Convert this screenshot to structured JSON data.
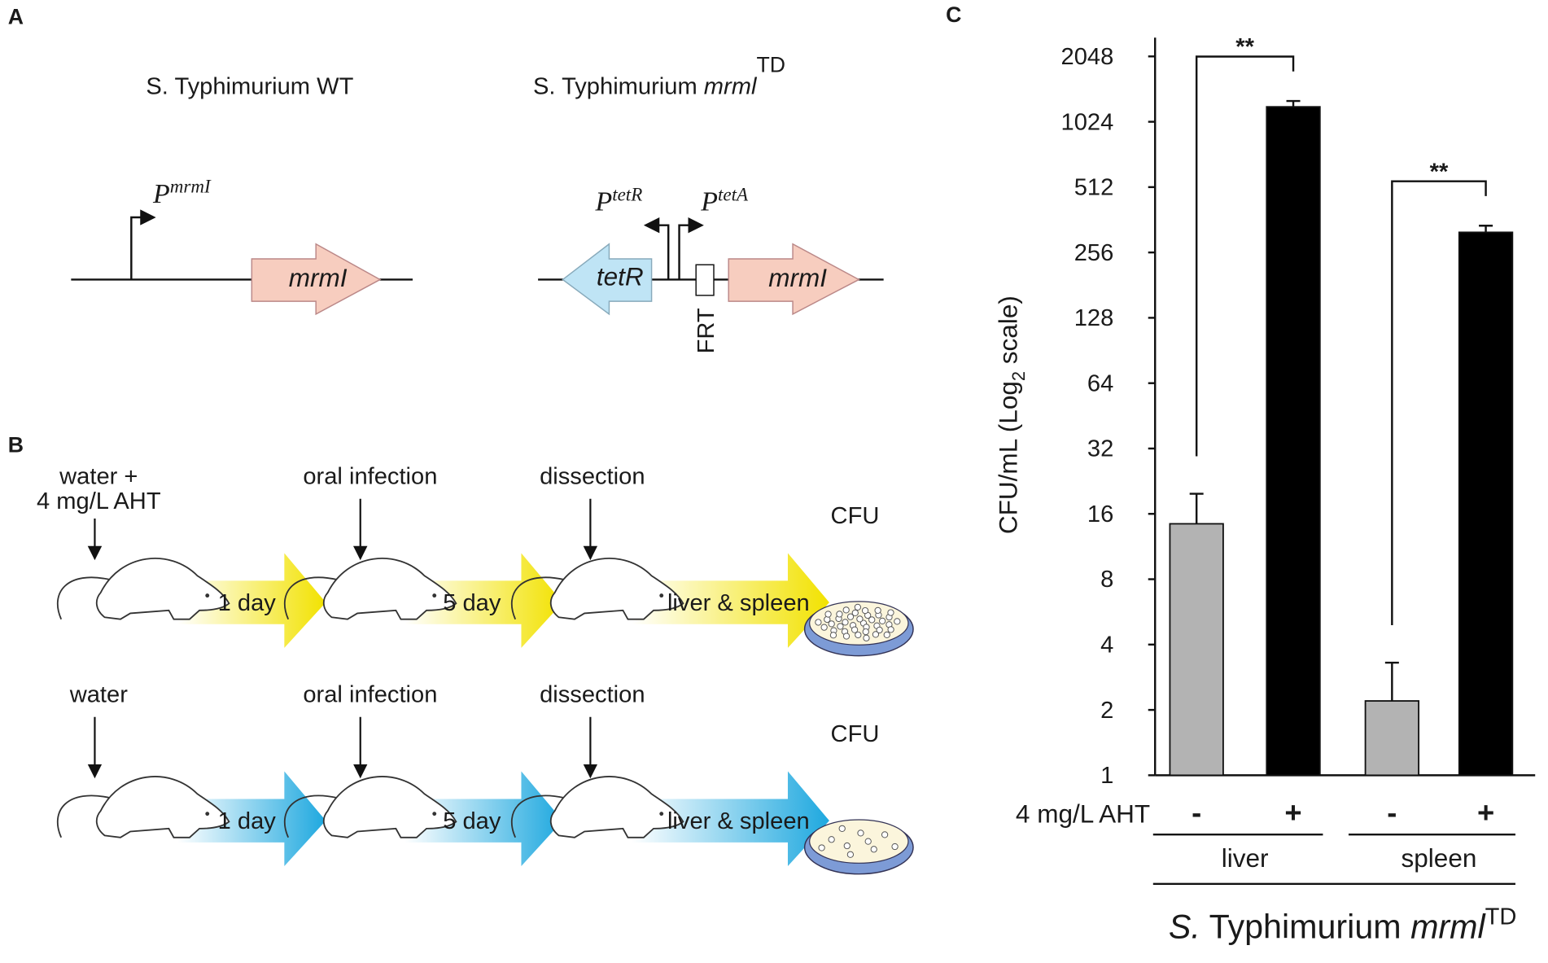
{
  "panel_labels": [
    "A",
    "B",
    "C"
  ],
  "panel_a": {
    "wt_title": "S. Typhimurium WT",
    "td_title": "S. Typhimurium ",
    "td_gene": "mrml",
    "td_sup": "TD",
    "promoters": [
      {
        "p": "P",
        "sup": "mrmI"
      },
      {
        "p": "P",
        "sup": "tetR"
      },
      {
        "p": "P",
        "sup": "tetA"
      }
    ],
    "genes": [
      "mrmI",
      "tetR",
      "mrmI"
    ],
    "frt": "FRT"
  },
  "panel_b": {
    "rows": [
      {
        "treatment": [
          "water +",
          "4 mg/L AHT"
        ],
        "infection": "oral infection",
        "dissection": "dissection",
        "day1": "1 day",
        "day5": "5 day",
        "organs": "liver & spleen",
        "cfu": "CFU"
      },
      {
        "treatment": [
          "water"
        ],
        "infection": "oral infection",
        "dissection": "dissection",
        "day1": "1 day",
        "day5": "5 day",
        "organs": "liver & spleen",
        "cfu": "CFU"
      }
    ]
  },
  "chart_data": {
    "type": "bar",
    "ylabel": [
      "CFU/mL (Log",
      "2",
      " scale)"
    ],
    "xlabel": [
      "S.",
      " Typhimurium ",
      "mrml",
      "TD"
    ],
    "row_label": "4 mg/L  AHT",
    "categories": [
      "-",
      "+",
      "-",
      "+"
    ],
    "groups": [
      "liver",
      "spleen"
    ],
    "values": [
      14.4,
      1200,
      2.2,
      317
    ],
    "errors": [
      5.4,
      76,
      1.1,
      23
    ],
    "colors": [
      "#b3b3b3",
      "#000000",
      "#b3b3b3",
      "#000000"
    ],
    "significance": [
      "**",
      "**"
    ],
    "log_base": 2,
    "ylim": [
      1,
      2048
    ],
    "yticks": [
      1,
      2,
      4,
      8,
      16,
      32,
      64,
      128,
      256,
      512,
      1024,
      2048
    ]
  }
}
